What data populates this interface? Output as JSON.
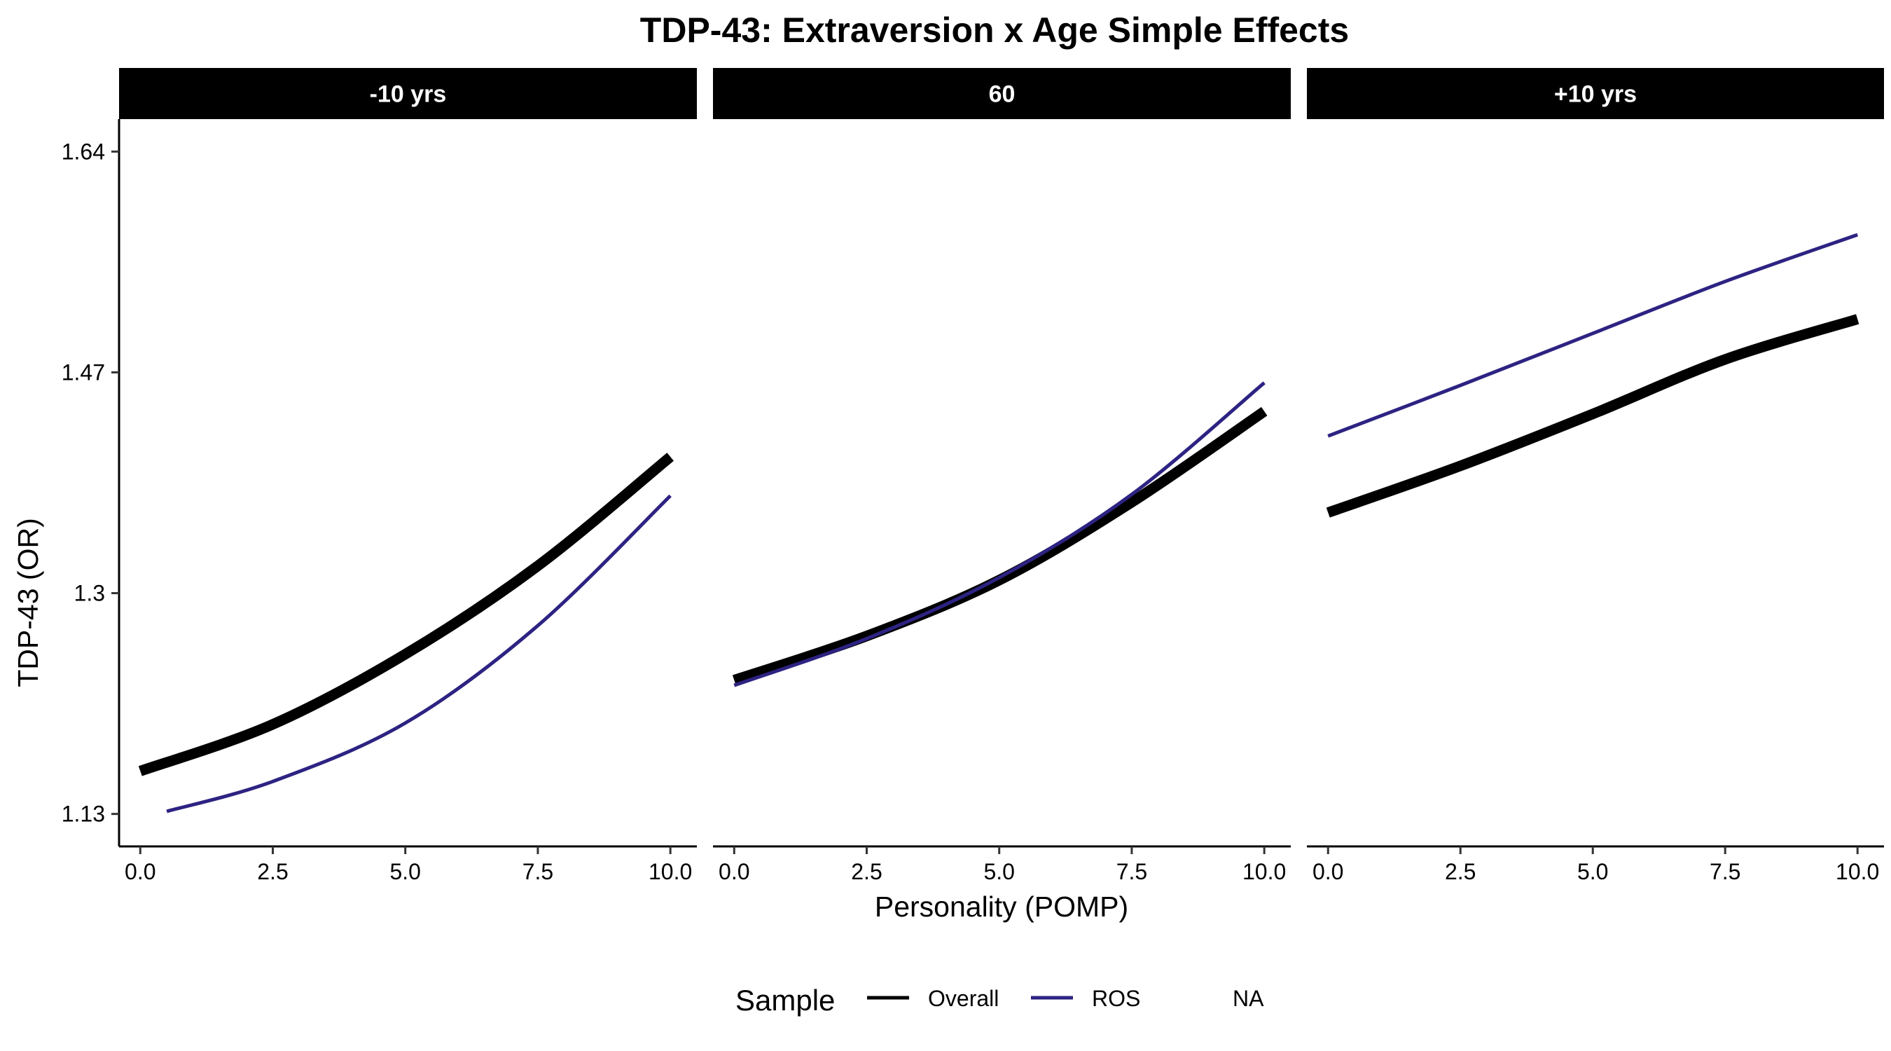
{
  "chart_data": {
    "type": "line",
    "title": "TDP-43: Extraversion x Age Simple Effects",
    "xlabel": "Personality (POMP)",
    "ylabel": "TDP-43 (OR)",
    "xlim": [
      -0.4,
      10.5
    ],
    "ylim": [
      1.105,
      1.665
    ],
    "x_ticks": [
      0,
      2.5,
      5,
      7.5,
      10
    ],
    "x_tick_labels": [
      "0.0",
      "2.5",
      "5.0",
      "7.5",
      "10.0"
    ],
    "y_ticks": [
      1.13,
      1.3,
      1.47,
      1.64
    ],
    "y_tick_labels": [
      "1.13",
      "1.3",
      "1.47",
      "1.64"
    ],
    "grid": false,
    "facets": [
      {
        "label": "-10 yrs",
        "series": [
          {
            "name": "Overall",
            "x": [
              0,
              2.5,
              5,
              7.5,
              10
            ],
            "y": [
              1.163,
              1.199,
              1.253,
              1.321,
              1.405
            ]
          },
          {
            "name": "ROS",
            "x": [
              0.5,
              2.5,
              5,
              7.5,
              10
            ],
            "y": [
              1.132,
              1.155,
              1.2,
              1.275,
              1.375
            ]
          }
        ]
      },
      {
        "label": "60",
        "series": [
          {
            "name": "Overall",
            "x": [
              0,
              2.5,
              5,
              7.5,
              10
            ],
            "y": [
              1.233,
              1.267,
              1.31,
              1.37,
              1.44
            ]
          },
          {
            "name": "ROS",
            "x": [
              0,
              2.5,
              5,
              7.5,
              10
            ],
            "y": [
              1.229,
              1.265,
              1.312,
              1.376,
              1.462
            ]
          }
        ]
      },
      {
        "label": "+10 yrs",
        "series": [
          {
            "name": "Overall",
            "x": [
              0,
              2.5,
              5,
              7.5,
              10
            ],
            "y": [
              1.362,
              1.398,
              1.438,
              1.48,
              1.511
            ]
          },
          {
            "name": "ROS",
            "x": [
              0,
              2.5,
              5,
              7.5,
              10
            ],
            "y": [
              1.421,
              1.46,
              1.5,
              1.54,
              1.576
            ]
          }
        ]
      }
    ],
    "legend": {
      "title": "Sample",
      "placement": "bottom",
      "entries": [
        {
          "label": "Overall",
          "color": "#000000"
        },
        {
          "label": "ROS",
          "color": "#2d2382"
        },
        {
          "label": "NA",
          "color": null
        }
      ]
    },
    "colors": {
      "Overall": "#000000",
      "ROS": "#2d2382"
    }
  }
}
